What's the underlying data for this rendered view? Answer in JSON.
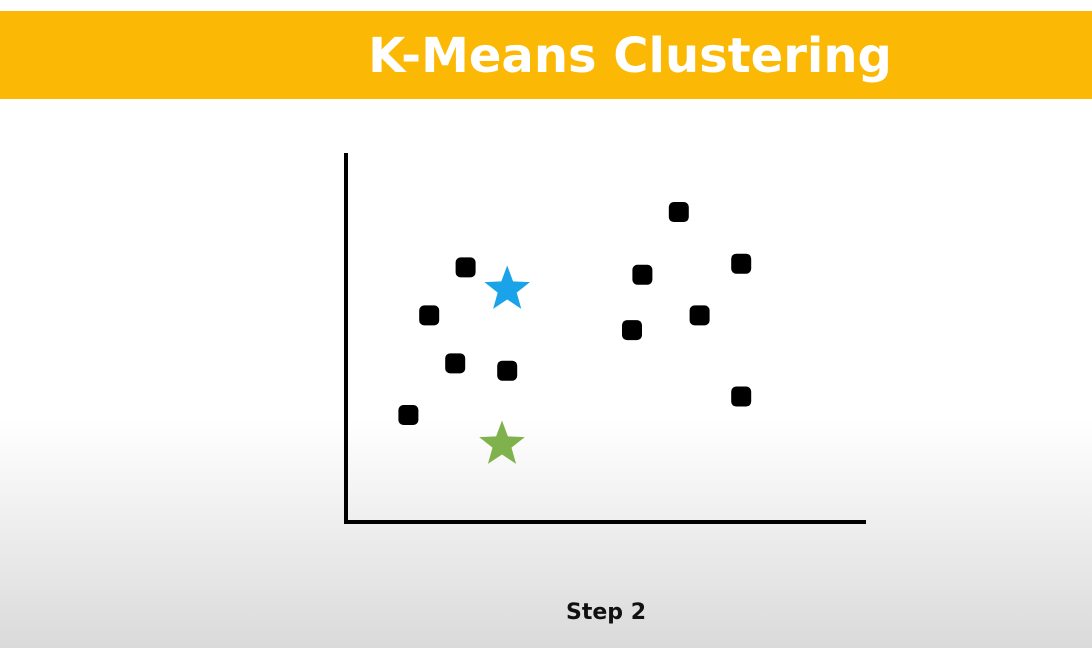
{
  "title": "K-Means Clustering",
  "step_label": "Step 2",
  "colors": {
    "banner": "#fbb905",
    "title_text": "#ffffff",
    "point": "#000000",
    "centroid_1": "#1aa3e8",
    "centroid_2": "#7fb24d",
    "axis": "#000000"
  },
  "chart_data": {
    "type": "scatter",
    "title": "",
    "xlabel": "",
    "ylabel": "",
    "xlim": [
      0,
      100
    ],
    "ylim": [
      0,
      100
    ],
    "grid": false,
    "series": [
      {
        "marker": "rounded-square",
        "color": "#000000",
        "points": [
          {
            "x": 12,
            "y": 29
          },
          {
            "x": 16,
            "y": 56
          },
          {
            "x": 21,
            "y": 43
          },
          {
            "x": 23,
            "y": 69
          },
          {
            "x": 31,
            "y": 41
          },
          {
            "x": 55,
            "y": 52
          },
          {
            "x": 57,
            "y": 67
          },
          {
            "x": 64,
            "y": 84
          },
          {
            "x": 68,
            "y": 56
          },
          {
            "x": 76,
            "y": 70
          },
          {
            "x": 76,
            "y": 34
          }
        ]
      },
      {
        "marker": "star",
        "color": "#1aa3e8",
        "points": [
          {
            "x": 31,
            "y": 63
          }
        ]
      },
      {
        "marker": "star",
        "color": "#7fb24d",
        "points": [
          {
            "x": 30,
            "y": 21
          }
        ]
      }
    ]
  }
}
